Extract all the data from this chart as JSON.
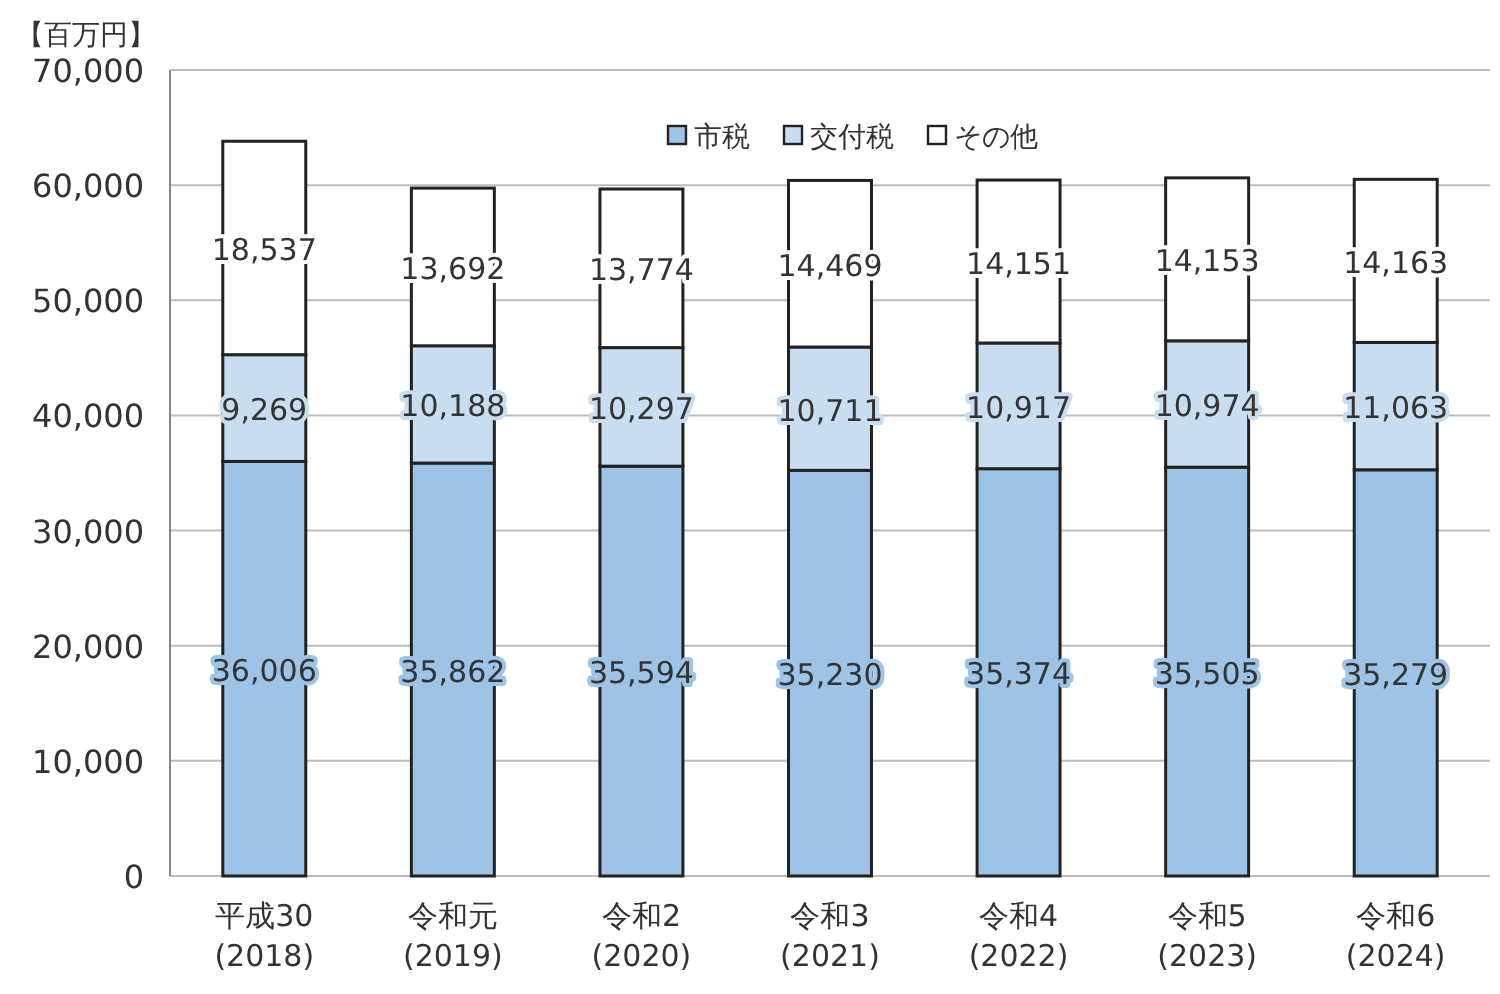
{
  "chart_data": {
    "type": "bar",
    "stacked": true,
    "ylabel": "【百万円】",
    "categories": [
      "平成30\n(2018)",
      "令和元\n(2019)",
      "令和2\n(2020)",
      "令和3\n(2021)",
      "令和4\n(2022)",
      "令和5\n(2023)",
      "令和6\n(2024)"
    ],
    "series": [
      {
        "name": "市税",
        "color": "#9dc3e6",
        "values": [
          36006,
          35862,
          35594,
          35230,
          35374,
          35505,
          35279
        ],
        "value_labels": [
          "36,006",
          "35,862",
          "35,594",
          "35,230",
          "35,374",
          "35,505",
          "35,279"
        ]
      },
      {
        "name": "交付税",
        "color": "#c9ddf0",
        "values": [
          9269,
          10188,
          10297,
          10711,
          10917,
          10974,
          11063
        ],
        "value_labels": [
          "9,269",
          "10,188",
          "10,297",
          "10,711",
          "10,917",
          "10,974",
          "11,063"
        ]
      },
      {
        "name": "その他",
        "color": "#ffffff",
        "values": [
          18537,
          13692,
          13774,
          14469,
          14151,
          14153,
          14163
        ],
        "value_labels": [
          "18,537",
          "13,692",
          "13,774",
          "14,469",
          "14,151",
          "14,153",
          "14,163"
        ]
      }
    ],
    "ylim": [
      0,
      70000
    ],
    "yticks": [
      {
        "value": 0,
        "label": "0"
      },
      {
        "value": 10000,
        "label": "10,000"
      },
      {
        "value": 20000,
        "label": "20,000"
      },
      {
        "value": 30000,
        "label": "30,000"
      },
      {
        "value": 40000,
        "label": "40,000"
      },
      {
        "value": 50000,
        "label": "50,000"
      },
      {
        "value": 60000,
        "label": "60,000"
      },
      {
        "value": 70000,
        "label": "70,000"
      }
    ],
    "grid": "y",
    "legend": "top"
  }
}
